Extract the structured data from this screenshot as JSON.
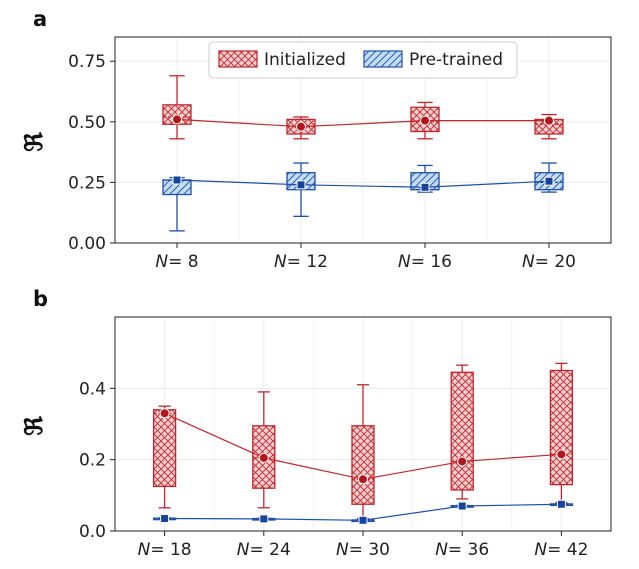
{
  "chart_data": [
    {
      "panel": "a",
      "type": "box",
      "ylabel": "ℜ",
      "ylim": [
        0,
        0.85
      ],
      "yticks": [
        0.0,
        0.25,
        0.5,
        0.75
      ],
      "ytick_labels": [
        "0.00",
        "0.25",
        "0.50",
        "0.75"
      ],
      "categories": [
        "N = 8",
        "N = 12",
        "N = 16",
        "N = 20"
      ],
      "category_parts": [
        [
          "N",
          "= 8"
        ],
        [
          "N",
          "= 12"
        ],
        [
          "N",
          "= 16"
        ],
        [
          "N",
          "= 20"
        ]
      ],
      "grid": true,
      "legend": "top-center",
      "series": [
        {
          "name": "Initialized",
          "color": "#c0272d",
          "fill": "#f4c6c6",
          "hatch": "crosshatch",
          "marker": "circle",
          "whisker_low": [
            0.43,
            0.43,
            0.43,
            0.43
          ],
          "q1": [
            0.49,
            0.45,
            0.46,
            0.45
          ],
          "median": [
            0.52,
            0.48,
            0.5,
            0.49
          ],
          "q3": [
            0.57,
            0.51,
            0.56,
            0.51
          ],
          "whisker_high": [
            0.69,
            0.52,
            0.58,
            0.53
          ],
          "mean": [
            0.51,
            0.48,
            0.505,
            0.505
          ]
        },
        {
          "name": "Pre-trained",
          "color": "#1f4fa8",
          "fill": "#bcd8f0",
          "hatch": "diagonal",
          "marker": "square",
          "whisker_low": [
            0.05,
            0.11,
            0.21,
            0.21
          ],
          "q1": [
            0.2,
            0.22,
            0.22,
            0.22
          ],
          "median": [
            0.26,
            0.24,
            0.22,
            0.25
          ],
          "q3": [
            0.26,
            0.29,
            0.29,
            0.29
          ],
          "whisker_high": [
            0.27,
            0.33,
            0.32,
            0.33
          ],
          "mean": [
            0.26,
            0.24,
            0.23,
            0.255
          ]
        }
      ]
    },
    {
      "panel": "b",
      "type": "box",
      "ylabel": "ℜ",
      "ylim": [
        0,
        0.6
      ],
      "yticks": [
        0.0,
        0.2,
        0.4
      ],
      "ytick_labels": [
        "0.0",
        "0.2",
        "0.4"
      ],
      "categories": [
        "N = 18",
        "N = 24",
        "N = 30",
        "N = 36",
        "N = 42"
      ],
      "category_parts": [
        [
          "N",
          "= 18"
        ],
        [
          "N",
          "= 24"
        ],
        [
          "N",
          "= 30"
        ],
        [
          "N",
          "= 36"
        ],
        [
          "N",
          "= 42"
        ]
      ],
      "grid": true,
      "series": [
        {
          "name": "Initialized",
          "color": "#c0272d",
          "fill": "#f4c6c6",
          "hatch": "crosshatch",
          "marker": "circle",
          "whisker_low": [
            0.065,
            0.065,
            0.035,
            0.09,
            0.08
          ],
          "q1": [
            0.125,
            0.12,
            0.075,
            0.115,
            0.13
          ],
          "median": [
            0.33,
            0.205,
            0.145,
            0.195,
            0.215
          ],
          "q3": [
            0.34,
            0.295,
            0.295,
            0.445,
            0.45
          ],
          "whisker_high": [
            0.35,
            0.39,
            0.41,
            0.465,
            0.47
          ],
          "mean": [
            0.33,
            0.205,
            0.145,
            0.195,
            0.215
          ]
        },
        {
          "name": "Pre-trained",
          "color": "#1f4fa8",
          "fill": "#bcd8f0",
          "hatch": "diagonal",
          "marker": "square",
          "whisker_low": [
            0.033,
            0.032,
            0.027,
            0.068,
            0.073
          ],
          "q1": [
            0.034,
            0.033,
            0.028,
            0.069,
            0.074
          ],
          "median": [
            0.035,
            0.034,
            0.03,
            0.07,
            0.075
          ],
          "q3": [
            0.036,
            0.035,
            0.031,
            0.071,
            0.076
          ],
          "whisker_high": [
            0.037,
            0.036,
            0.032,
            0.072,
            0.077
          ],
          "mean": [
            0.035,
            0.034,
            0.03,
            0.07,
            0.075
          ]
        }
      ]
    }
  ]
}
